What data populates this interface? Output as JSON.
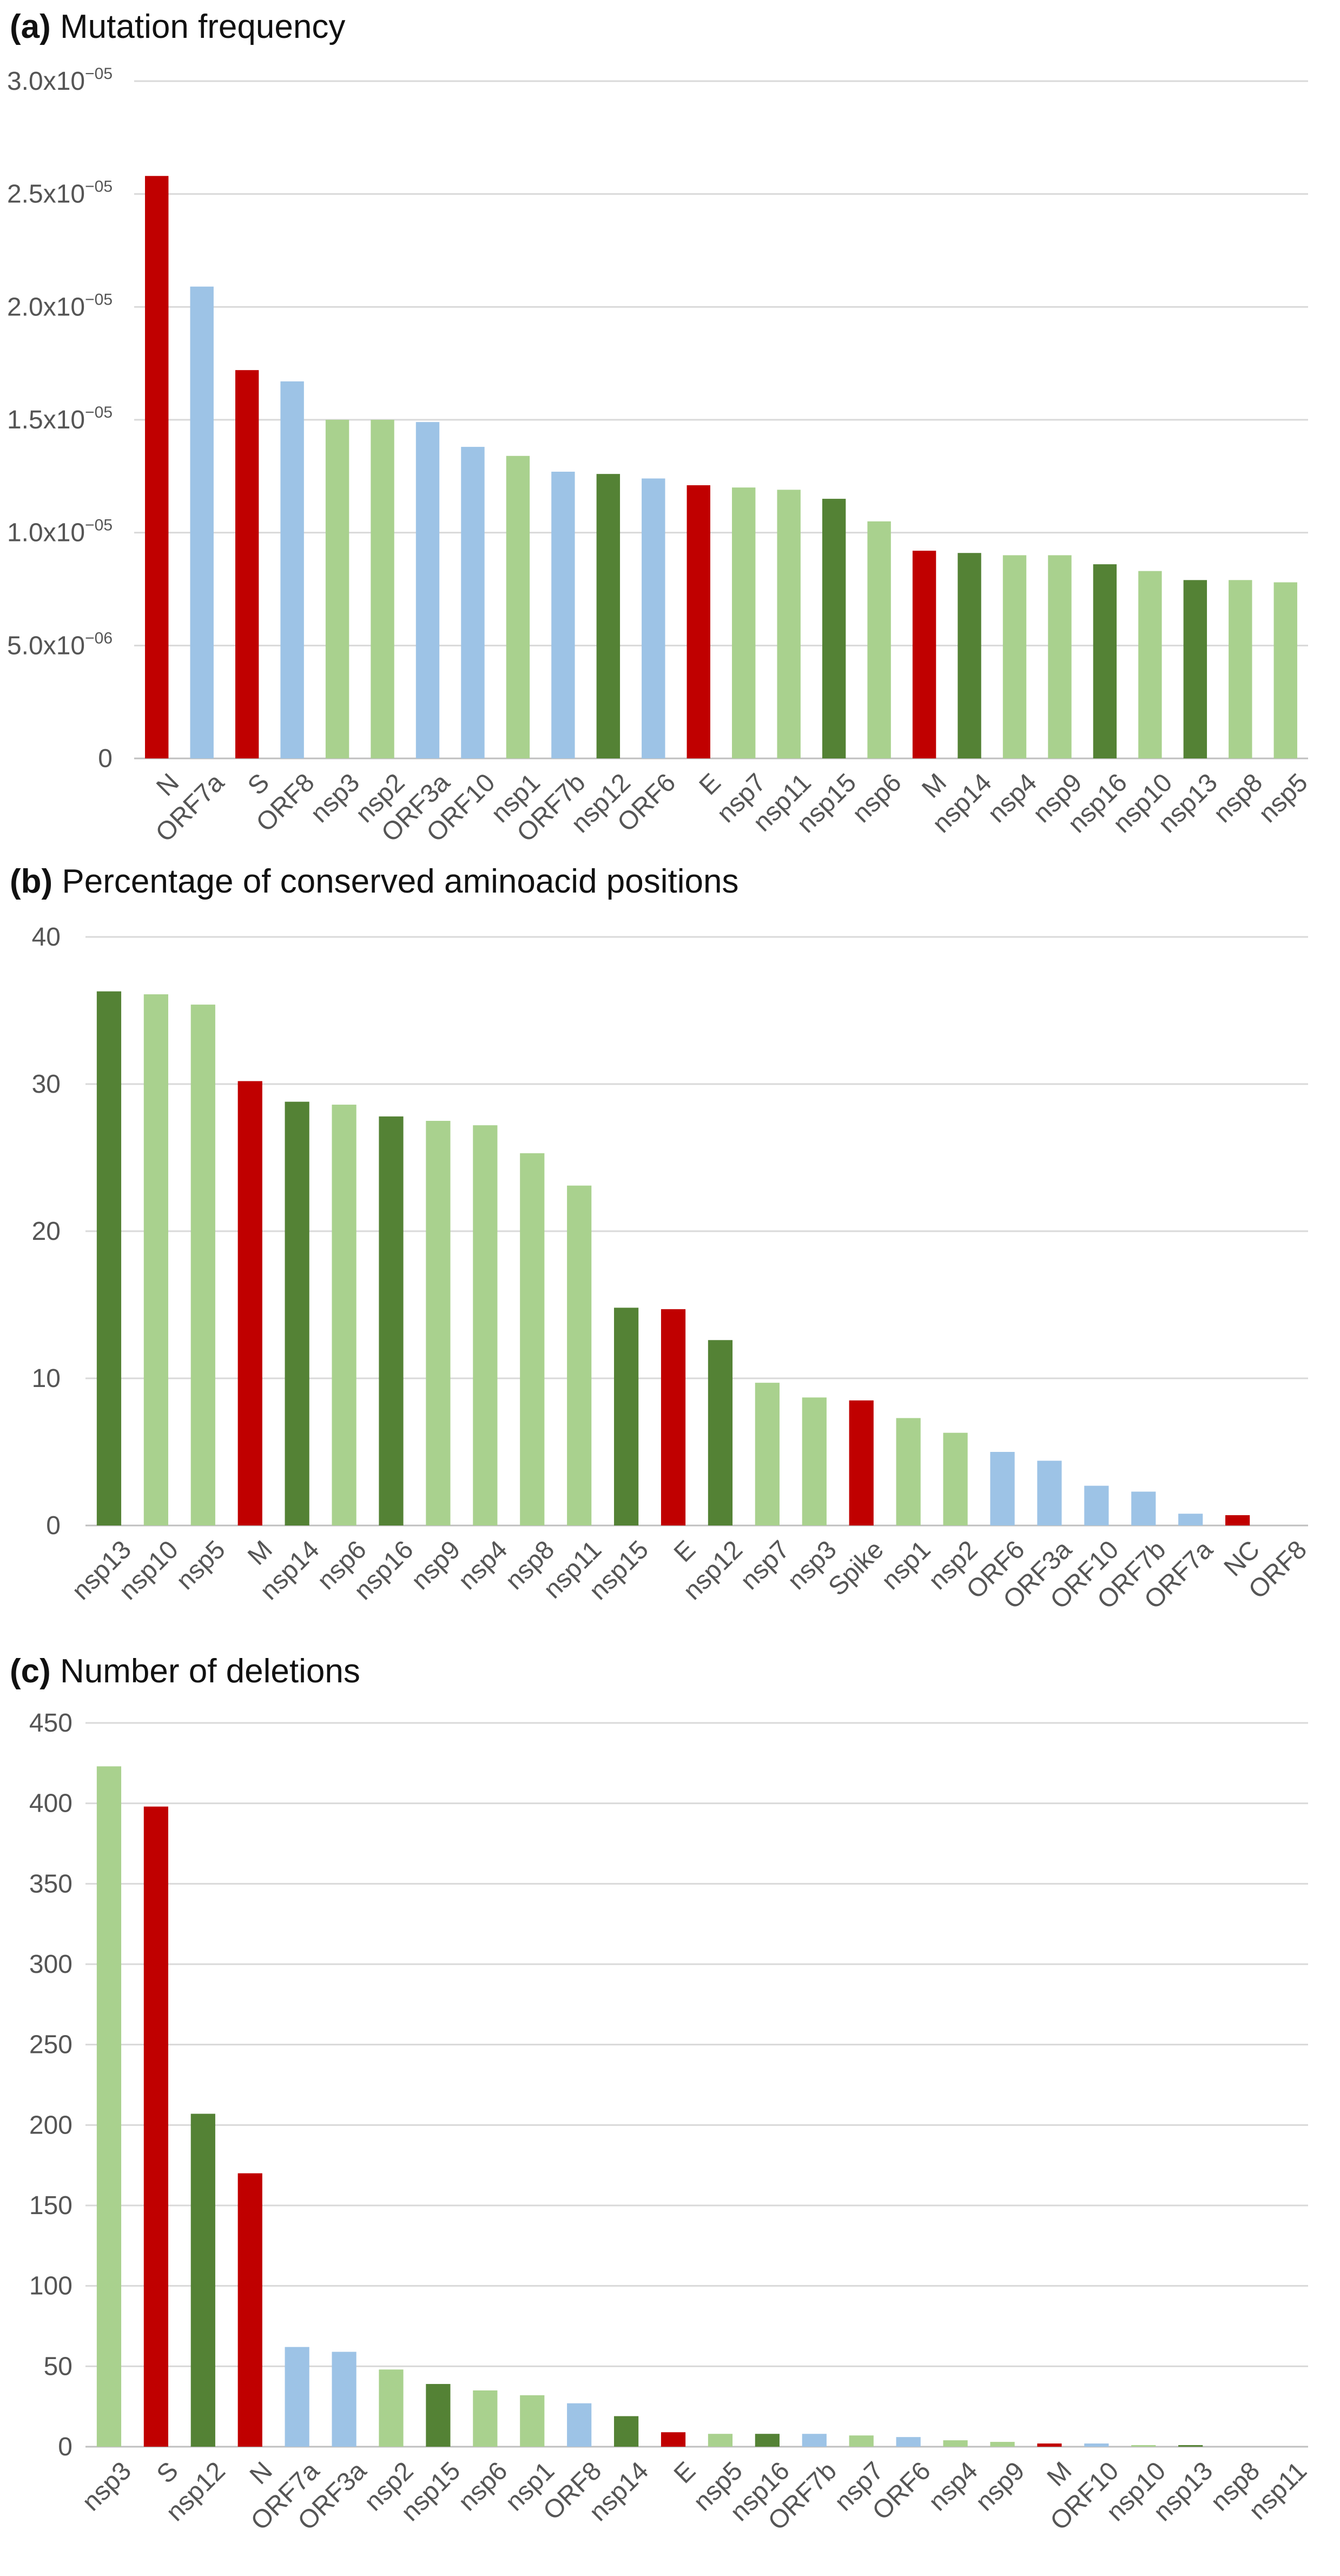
{
  "colors": {
    "red": "#C00000",
    "lightgreen": "#A9D18E",
    "darkgreen": "#548235",
    "blue": "#9DC3E6",
    "grid": "#D9D9D9"
  },
  "chart_data": [
    {
      "type": "bar",
      "label_prefix": "(a)",
      "title": "Mutation frequency",
      "ylim": [
        0,
        3e-05
      ],
      "yticks": [
        0,
        5e-06,
        1e-05,
        1.5e-05,
        2e-05,
        2.5e-05,
        3e-05
      ],
      "ytick_labels": [
        {
          "text": "0",
          "mant": "",
          "exp": ""
        },
        {
          "text": "",
          "mant": "5.0x10",
          "exp": "−06"
        },
        {
          "text": "",
          "mant": "1.0x10",
          "exp": "−05"
        },
        {
          "text": "",
          "mant": "1.5x10",
          "exp": "−05"
        },
        {
          "text": "",
          "mant": "2.0x10",
          "exp": "−05"
        },
        {
          "text": "",
          "mant": "2.5x10",
          "exp": "−05"
        },
        {
          "text": "",
          "mant": "3.0x10",
          "exp": "−05"
        }
      ],
      "categories": [
        "N",
        "ORF7a",
        "S",
        "ORF8",
        "nsp3",
        "nsp2",
        "ORF3a",
        "ORF10",
        "nsp1",
        "ORF7b",
        "nsp12",
        "ORF6",
        "E",
        "nsp7",
        "nsp11",
        "nsp15",
        "nsp6",
        "M",
        "nsp14",
        "nsp4",
        "nsp9",
        "nsp16",
        "nsp10",
        "nsp13",
        "nsp8",
        "nsp5"
      ],
      "values": [
        2.58e-05,
        2.09e-05,
        1.72e-05,
        1.67e-05,
        1.5e-05,
        1.5e-05,
        1.49e-05,
        1.38e-05,
        1.34e-05,
        1.27e-05,
        1.26e-05,
        1.24e-05,
        1.21e-05,
        1.2e-05,
        1.19e-05,
        1.15e-05,
        1.05e-05,
        9.2e-06,
        9.1e-06,
        9e-06,
        9e-06,
        8.6e-06,
        8.3e-06,
        7.9e-06,
        7.9e-06,
        7.8e-06
      ],
      "bar_colors": [
        "red",
        "blue",
        "red",
        "blue",
        "lightgreen",
        "lightgreen",
        "blue",
        "blue",
        "lightgreen",
        "blue",
        "darkgreen",
        "blue",
        "red",
        "lightgreen",
        "lightgreen",
        "darkgreen",
        "lightgreen",
        "red",
        "darkgreen",
        "lightgreen",
        "lightgreen",
        "darkgreen",
        "lightgreen",
        "darkgreen",
        "lightgreen",
        "lightgreen"
      ]
    },
    {
      "type": "bar",
      "label_prefix": "(b)",
      "title": "Percentage of conserved aminoacid positions",
      "ylim": [
        0,
        40
      ],
      "yticks": [
        0,
        10,
        20,
        30,
        40
      ],
      "ytick_labels": [
        {
          "text": "0"
        },
        {
          "text": "10"
        },
        {
          "text": "20"
        },
        {
          "text": "30"
        },
        {
          "text": "40"
        }
      ],
      "categories": [
        "nsp13",
        "nsp10",
        "nsp5",
        "M",
        "nsp14",
        "nsp6",
        "nsp16",
        "nsp9",
        "nsp4",
        "nsp8",
        "nsp11",
        "nsp15",
        "E",
        "nsp12",
        "nsp7",
        "nsp3",
        "Spike",
        "nsp1",
        "nsp2",
        "ORF6",
        "ORF3a",
        "ORF10",
        "ORF7b",
        "ORF7a",
        "NC",
        "ORF8"
      ],
      "values": [
        36.3,
        36.1,
        35.4,
        30.2,
        28.8,
        28.6,
        27.8,
        27.5,
        27.2,
        25.3,
        23.1,
        14.8,
        14.7,
        12.6,
        9.7,
        8.7,
        8.5,
        7.3,
        6.3,
        5.0,
        4.4,
        2.7,
        2.3,
        0.8,
        0.7,
        0
      ],
      "bar_colors": [
        "darkgreen",
        "lightgreen",
        "lightgreen",
        "red",
        "darkgreen",
        "lightgreen",
        "darkgreen",
        "lightgreen",
        "lightgreen",
        "lightgreen",
        "lightgreen",
        "darkgreen",
        "red",
        "darkgreen",
        "lightgreen",
        "lightgreen",
        "red",
        "lightgreen",
        "lightgreen",
        "blue",
        "blue",
        "blue",
        "blue",
        "blue",
        "red",
        "blue"
      ]
    },
    {
      "type": "bar",
      "label_prefix": "(c)",
      "title": "Number of deletions",
      "ylim": [
        0,
        450
      ],
      "yticks": [
        0,
        50,
        100,
        150,
        200,
        250,
        300,
        350,
        400,
        450
      ],
      "ytick_labels": [
        {
          "text": "0"
        },
        {
          "text": "50"
        },
        {
          "text": "100"
        },
        {
          "text": "150"
        },
        {
          "text": "200"
        },
        {
          "text": "250"
        },
        {
          "text": "300"
        },
        {
          "text": "350"
        },
        {
          "text": "400"
        },
        {
          "text": "450"
        }
      ],
      "categories": [
        "nsp3",
        "S",
        "nsp12",
        "N",
        "ORF7a",
        "ORF3a",
        "nsp2",
        "nsp15",
        "nsp6",
        "nsp1",
        "ORF8",
        "nsp14",
        "E",
        "nsp5",
        "nsp16",
        "ORF7b",
        "nsp7",
        "ORF6",
        "nsp4",
        "nsp9",
        "M",
        "ORF10",
        "nsp10",
        "nsp13",
        "nsp8",
        "nsp11"
      ],
      "values": [
        423,
        398,
        207,
        170,
        62,
        59,
        48,
        39,
        35,
        32,
        27,
        19,
        9,
        8,
        8,
        8,
        7,
        6,
        4,
        3,
        2,
        2,
        1,
        1,
        0,
        0
      ],
      "bar_colors": [
        "lightgreen",
        "red",
        "darkgreen",
        "red",
        "blue",
        "blue",
        "lightgreen",
        "darkgreen",
        "lightgreen",
        "lightgreen",
        "blue",
        "darkgreen",
        "red",
        "lightgreen",
        "darkgreen",
        "blue",
        "lightgreen",
        "blue",
        "lightgreen",
        "lightgreen",
        "red",
        "blue",
        "lightgreen",
        "darkgreen",
        "lightgreen",
        "lightgreen"
      ]
    }
  ]
}
